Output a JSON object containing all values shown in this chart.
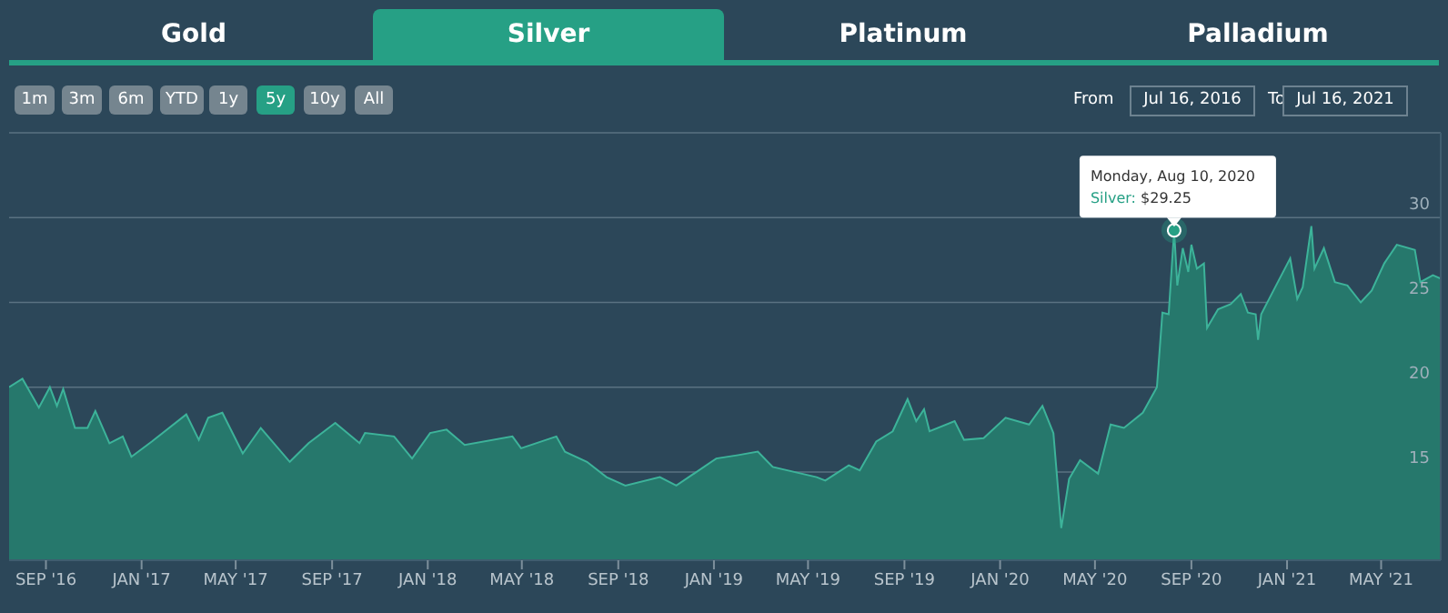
{
  "chart_data": {
    "type": "area",
    "annotations": [
      "Gold",
      "Silver",
      "Platinum",
      "Palladium",
      "1m",
      "3m",
      "6m",
      "YTD",
      "1y",
      "5y",
      "10y",
      "All",
      "From",
      "Jul 16, 2016",
      "To",
      "Jul 16, 2021",
      "Monday, Aug 10, 2020",
      {
        "text": "Silver: $29.25",
        "x": "2020-08-10",
        "y": 29.25
      }
    ],
    "x": [
      "2016-07-16",
      "2016-08-02",
      "2016-08-23",
      "2016-09-06",
      "2016-09-15",
      "2016-09-23",
      "2016-10-08",
      "2016-10-24",
      "2016-11-03",
      "2016-11-21",
      "2016-12-08",
      "2016-12-19",
      "2017-01-14",
      "2017-02-27",
      "2017-03-15",
      "2017-03-27",
      "2017-04-14",
      "2017-05-10",
      "2017-06-02",
      "2017-07-09",
      "2017-08-02",
      "2017-09-05",
      "2017-10-06",
      "2017-10-13",
      "2017-11-19",
      "2017-12-12",
      "2018-01-04",
      "2018-01-25",
      "2018-02-17",
      "2018-04-19",
      "2018-04-30",
      "2018-06-14",
      "2018-06-25",
      "2018-07-23",
      "2018-08-17",
      "2018-09-10",
      "2018-10-24",
      "2018-11-14",
      "2019-01-04",
      "2019-02-01",
      "2019-02-26",
      "2019-03-17",
      "2019-05-12",
      "2019-05-23",
      "2019-06-22",
      "2019-07-06",
      "2019-07-27",
      "2019-08-17",
      "2019-09-05",
      "2019-09-16",
      "2019-09-26",
      "2019-10-03",
      "2019-11-04",
      "2019-11-16",
      "2019-12-11",
      "2020-01-08",
      "2020-02-07",
      "2020-02-24",
      "2020-03-09",
      "2020-03-19",
      "2020-03-29",
      "2020-04-12",
      "2020-05-05",
      "2020-05-21",
      "2020-06-07",
      "2020-07-01",
      "2020-07-19",
      "2020-07-26",
      "2020-08-03",
      "2020-08-10",
      "2020-08-14",
      "2020-08-21",
      "2020-08-28",
      "2020-09-01",
      "2020-09-08",
      "2020-09-17",
      "2020-09-21",
      "2020-10-05",
      "2020-10-21",
      "2020-11-03",
      "2020-11-12",
      "2020-11-22",
      "2020-11-25",
      "2020-11-29",
      "2020-12-18",
      "2021-01-05",
      "2021-01-14",
      "2021-01-21",
      "2021-02-01",
      "2021-02-05",
      "2021-02-17",
      "2021-03-03",
      "2021-03-19",
      "2021-04-05",
      "2021-04-19",
      "2021-05-05",
      "2021-05-21",
      "2021-06-13",
      "2021-06-20",
      "2021-07-06",
      "2021-07-16"
    ],
    "series": [
      {
        "color": "#26786c",
        "values": [
          20.0,
          20.5,
          18.8,
          20.0,
          18.9,
          19.9,
          17.6,
          17.6,
          18.6,
          16.7,
          17.1,
          15.9,
          16.8,
          18.4,
          16.9,
          18.2,
          18.5,
          16.1,
          17.6,
          15.6,
          16.7,
          17.9,
          16.7,
          17.3,
          17.1,
          15.8,
          17.3,
          17.5,
          16.6,
          17.1,
          16.4,
          17.1,
          16.2,
          15.6,
          14.7,
          14.2,
          14.7,
          14.2,
          15.8,
          16.0,
          16.2,
          15.3,
          14.7,
          14.5,
          15.4,
          15.1,
          16.8,
          17.4,
          19.3,
          18.0,
          18.7,
          17.4,
          18.0,
          16.9,
          17.0,
          18.2,
          17.8,
          18.9,
          17.3,
          11.7,
          14.6,
          15.7,
          14.9,
          17.8,
          17.6,
          18.5,
          20.0,
          24.4,
          24.3,
          29.25,
          26.0,
          28.2,
          26.8,
          28.4,
          27.0,
          27.3,
          23.5,
          24.6,
          24.9,
          25.5,
          24.4,
          24.3,
          22.8,
          24.3,
          26.0,
          27.6,
          25.2,
          25.9,
          29.5,
          27.0,
          28.2,
          26.2,
          26.0,
          25.0,
          25.7,
          27.3,
          28.4,
          28.1,
          26.2,
          26.6,
          26.4
        ]
      }
    ],
    "xlim": [
      "2016-07-16",
      "2021-07-16"
    ],
    "xticks": [
      {
        "value": "2016-09-01",
        "label": "SEP '16"
      },
      {
        "value": "2017-01-01",
        "label": "JAN '17"
      },
      {
        "value": "2017-05-01",
        "label": "MAY '17"
      },
      {
        "value": "2017-09-01",
        "label": "SEP '17"
      },
      {
        "value": "2018-01-01",
        "label": "JAN '18"
      },
      {
        "value": "2018-05-01",
        "label": "MAY '18"
      },
      {
        "value": "2018-09-01",
        "label": "SEP '18"
      },
      {
        "value": "2019-01-01",
        "label": "JAN '19"
      },
      {
        "value": "2019-05-01",
        "label": "MAY '19"
      },
      {
        "value": "2019-09-01",
        "label": "SEP '19"
      },
      {
        "value": "2020-01-01",
        "label": "JAN '20"
      },
      {
        "value": "2020-05-01",
        "label": "MAY '20"
      },
      {
        "value": "2020-09-01",
        "label": "SEP '20"
      },
      {
        "value": "2021-01-01",
        "label": "JAN '21"
      },
      {
        "value": "2021-05-01",
        "label": "MAY '21"
      }
    ],
    "ylim": [
      9.8,
      35
    ],
    "yticks": [
      15,
      20,
      25,
      30
    ],
    "grid": "y"
  }
}
